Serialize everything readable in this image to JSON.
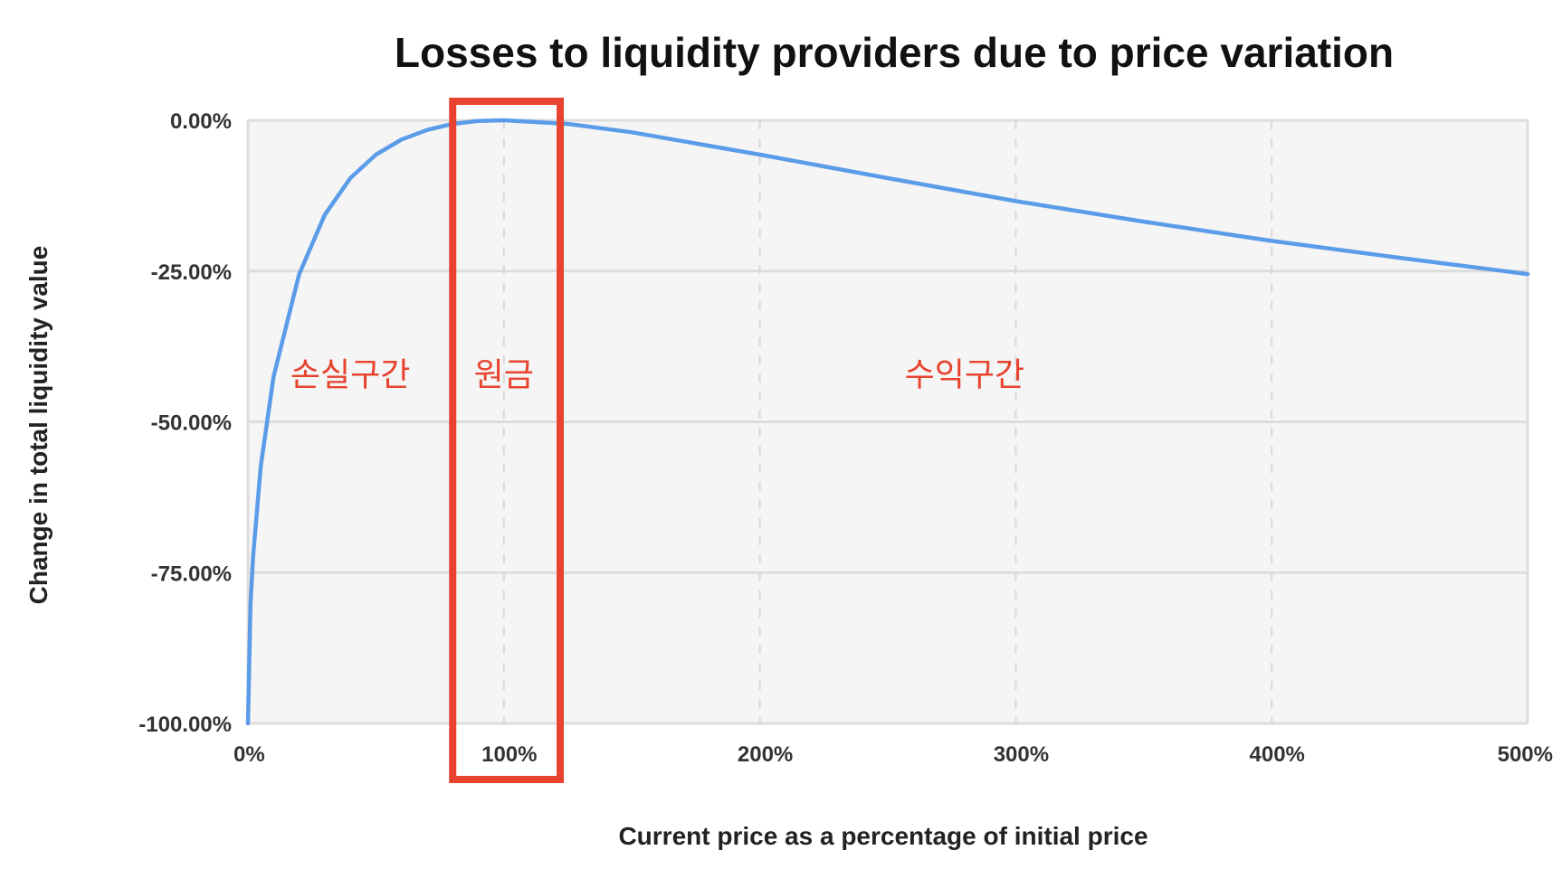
{
  "chart_data": {
    "type": "line",
    "title": "Losses to liquidity providers due to price variation",
    "xlabel": "Current price as a percentage of initial price",
    "ylabel": "Change in total liquidity value",
    "xlim": [
      0,
      500
    ],
    "ylim": [
      -100,
      0
    ],
    "x_ticks": [
      "0%",
      "100%",
      "200%",
      "300%",
      "400%",
      "500%"
    ],
    "y_ticks": [
      "0.00%",
      "-25.00%",
      "-50.00%",
      "-75.00%",
      "-100.00%"
    ],
    "grid": true,
    "x_grid_style": "dashed",
    "series": [
      {
        "x": [
          0,
          1,
          2,
          5,
          10,
          20,
          30,
          40,
          50,
          60,
          70,
          80,
          90,
          100,
          125,
          150,
          200,
          250,
          300,
          350,
          400,
          450,
          500
        ],
        "y": [
          -100,
          -80.2,
          -72.3,
          -57.4,
          -42.5,
          -25.5,
          -15.7,
          -9.6,
          -5.7,
          -3.2,
          -1.6,
          -0.6,
          -0.1,
          0,
          -0.6,
          -2.0,
          -5.7,
          -9.6,
          -13.4,
          -16.8,
          -20.0,
          -22.8,
          -25.5
        ],
        "color": "#5b9ce8"
      }
    ],
    "annotations": [
      {
        "text": "손실구간",
        "x": 40,
        "y": -44
      },
      {
        "text": "원금",
        "x": 100,
        "y": -44
      },
      {
        "text": "수익구간",
        "x": 280,
        "y": -44
      }
    ],
    "highlight": {
      "x_from": 80,
      "x_to": 122,
      "color": "#e8432e"
    }
  }
}
